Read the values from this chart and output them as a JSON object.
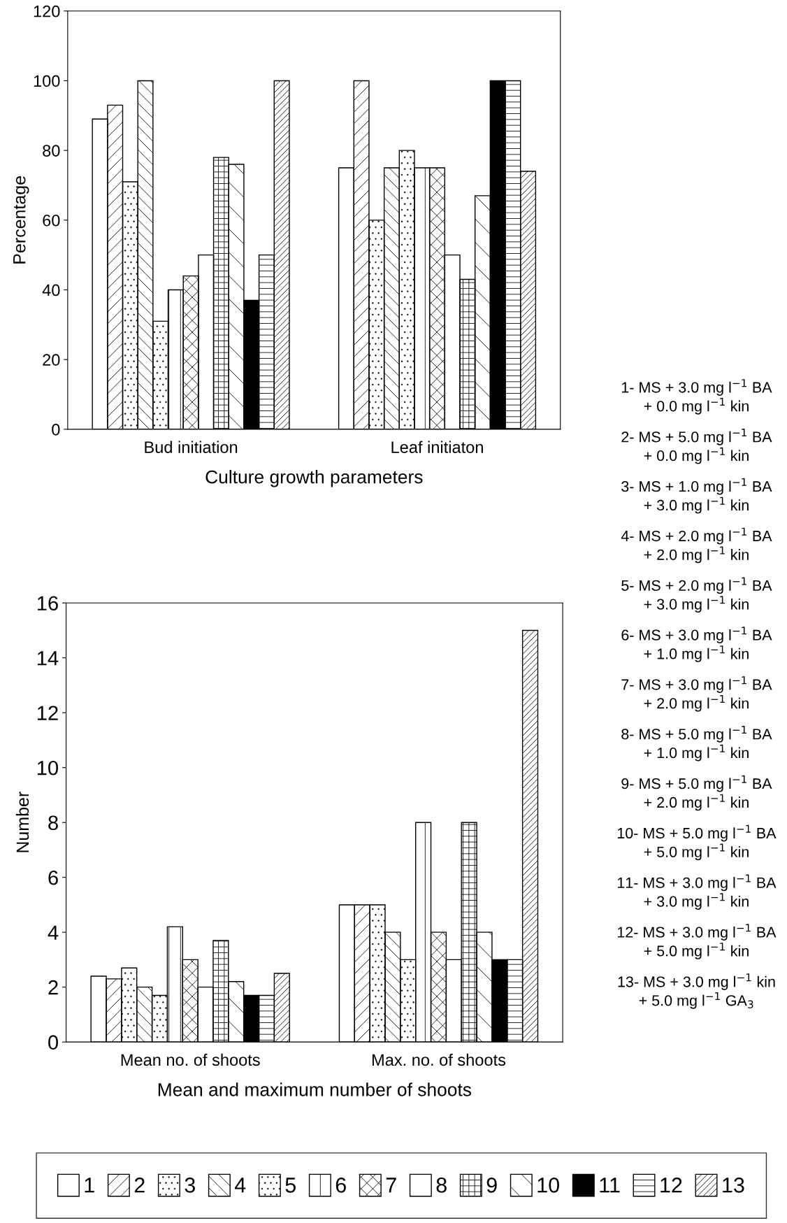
{
  "chart_data": [
    {
      "type": "bar",
      "xlabel": "Culture growth parameters",
      "ylabel": "Percentage",
      "categories": [
        "Bud initiation",
        "Leaf initiaton"
      ],
      "ylim": [
        0,
        120
      ],
      "yticks": [
        0,
        20,
        40,
        60,
        80,
        100,
        120
      ],
      "grid": false,
      "legend": false,
      "series": [
        {
          "color": "#000000",
          "values": [
            89,
            75
          ]
        },
        {
          "color": "#000000",
          "values": [
            93,
            100
          ]
        },
        {
          "color": "#000000",
          "values": [
            71,
            60
          ]
        },
        {
          "color": "#000000",
          "values": [
            100,
            75
          ]
        },
        {
          "color": "#000000",
          "values": [
            31,
            80
          ]
        },
        {
          "color": "#000000",
          "values": [
            40,
            75
          ]
        },
        {
          "color": "#000000",
          "values": [
            44,
            75
          ]
        },
        {
          "color": "#000000",
          "values": [
            50,
            50
          ]
        },
        {
          "color": "#000000",
          "values": [
            78,
            43
          ]
        },
        {
          "color": "#000000",
          "values": [
            76,
            67
          ]
        },
        {
          "color": "#000000",
          "values": [
            37,
            100
          ]
        },
        {
          "color": "#000000",
          "values": [
            50,
            100
          ]
        },
        {
          "color": "#000000",
          "values": [
            100,
            74
          ]
        }
      ],
      "annotations": [
        "1- MS + 3.0 mg l$^{−1}$ BA\n+ 0.0 mg l$^{−1}$ kin",
        "2- MS + 5.0 mg l$^{−1}$ BA\n+ 0.0 mg l$^{−1}$ kin",
        "3- MS + 1.0 mg l$^{−1}$ BA\n+ 3.0 mg l$^{−1}$ kin",
        "4- MS + 2.0 mg l$^{−1}$ BA\n+ 2.0 mg l$^{−1}$ kin",
        "5- MS + 2.0 mg l$^{−1}$ BA\n+ 3.0 mg l$^{−1}$ kin",
        "6- MS + 3.0 mg l$^{−1}$ BA\n+ 1.0 mg l$^{−1}$ kin",
        "7- MS + 3.0 mg l$^{−1}$ BA\n+ 2.0 mg l$^{−1}$ kin",
        "8- MS + 5.0 mg l$^{−1}$ BA\n+ 1.0 mg l$^{−1}$ kin",
        "9- MS + 5.0 mg l$^{−1}$ BA\n+ 2.0 mg l$^{−1}$ kin",
        "10- MS + 5.0 mg l$^{−1}$ BA\n+ 5.0 mg l$^{−1}$ kin",
        "11- MS + 3.0 mg l$^{−1}$ BA\n+ 3.0 mg l$^{−1}$ kin",
        "12- MS + 3.0 mg l$^{−1}$ BA\n+ 5.0 mg l$^{−1}$ kin",
        "13- MS + 3.0 mg l$^{−1}$ kin\n+ 5.0 mg l$^{−1}$ GA$_{3}$"
      ]
    },
    {
      "type": "bar",
      "xlabel": "Mean and maximum number of shoots",
      "ylabel": "Number",
      "categories": [
        "Mean no. of shoots",
        "Max. no. of shoots"
      ],
      "ylim": [
        0,
        16
      ],
      "yticks": [
        0,
        2,
        4,
        6,
        8,
        10,
        12,
        14,
        16
      ],
      "grid": false,
      "legend": "bottom",
      "series": [
        {
          "name": "1",
          "color": "#000000",
          "values": [
            2.4,
            5
          ]
        },
        {
          "name": "2",
          "color": "#000000",
          "values": [
            2.3,
            5
          ]
        },
        {
          "name": "3",
          "color": "#000000",
          "values": [
            2.7,
            5
          ]
        },
        {
          "name": "4",
          "color": "#000000",
          "values": [
            2.0,
            4
          ]
        },
        {
          "name": "5",
          "color": "#000000",
          "values": [
            1.7,
            3
          ]
        },
        {
          "name": "6",
          "color": "#000000",
          "values": [
            4.2,
            8
          ]
        },
        {
          "name": "7",
          "color": "#000000",
          "values": [
            3.0,
            4
          ]
        },
        {
          "name": "8",
          "color": "#000000",
          "values": [
            2.0,
            3
          ]
        },
        {
          "name": "9",
          "color": "#000000",
          "values": [
            3.7,
            8
          ]
        },
        {
          "name": "10",
          "color": "#000000",
          "values": [
            2.2,
            4
          ]
        },
        {
          "name": "11",
          "color": "#000000",
          "values": [
            1.7,
            3
          ]
        },
        {
          "name": "12",
          "color": "#000000",
          "values": [
            1.7,
            3
          ]
        },
        {
          "name": "13",
          "color": "#000000",
          "values": [
            2.5,
            15
          ]
        }
      ]
    }
  ]
}
